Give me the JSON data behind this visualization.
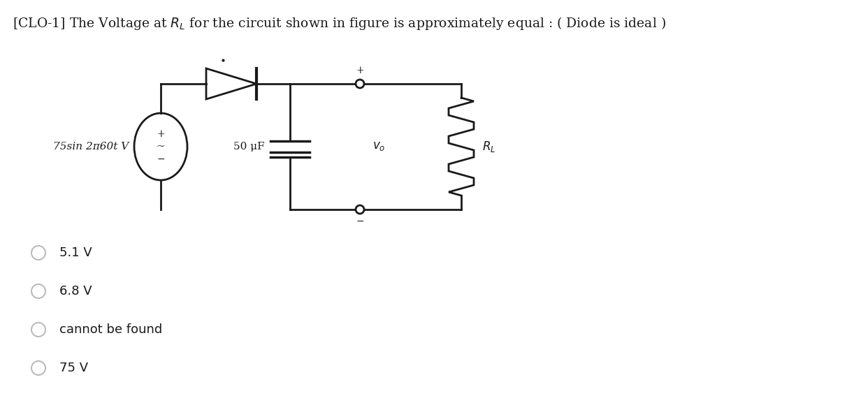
{
  "title_plain": "[CLO-1] The Voltage at $R_L$ for the circuit shown in figure is approximately equal : ( Diode is ideal )",
  "source_label": "75sin 2π60t V",
  "capacitor_label": "50 μF",
  "vo_label": "$v_o$",
  "rl_label": "$R_L$",
  "options": [
    "5.1 V",
    "6.8 V",
    "cannot be found",
    "75 V"
  ],
  "bg_color": "#ffffff",
  "fg_color": "#1a1a1a",
  "radio_color": "#bbbbbb",
  "font_size_title": 13.5,
  "font_size_labels": 11,
  "font_size_options": 13
}
